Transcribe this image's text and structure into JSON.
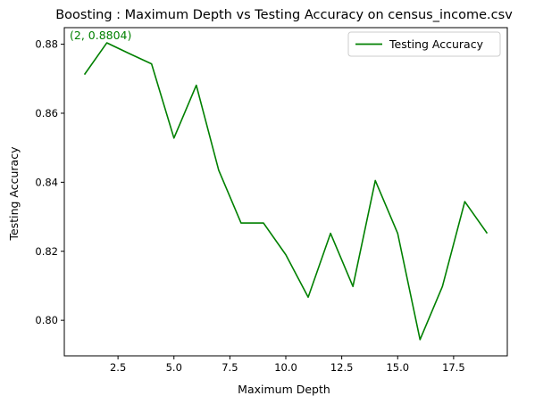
{
  "chart_data": {
    "type": "line",
    "title": "Boosting : Maximum Depth vs Testing Accuracy on census_income.csv",
    "xlabel": "Maximum Depth",
    "ylabel": "Testing Accuracy",
    "xlim": [
      0.1,
      19.9
    ],
    "ylim": [
      0.7897,
      0.8848
    ],
    "xticks": [
      2.5,
      5.0,
      7.5,
      10.0,
      12.5,
      15.0,
      17.5
    ],
    "xtick_labels": [
      "2.5",
      "5.0",
      "7.5",
      "10.0",
      "12.5",
      "15.0",
      "17.5"
    ],
    "yticks": [
      0.8,
      0.82,
      0.84,
      0.86,
      0.88
    ],
    "ytick_labels": [
      "0.80",
      "0.82",
      "0.84",
      "0.86",
      "0.88"
    ],
    "grid": false,
    "legend_position": "top-right",
    "series": [
      {
        "name": "Testing Accuracy",
        "color": "#008000",
        "x": [
          1,
          2,
          3,
          4,
          5,
          6,
          7,
          8,
          9,
          10,
          11,
          12,
          13,
          14,
          15,
          16,
          17,
          18,
          19
        ],
        "y": [
          0.8712,
          0.8804,
          0.8773,
          0.8743,
          0.8528,
          0.8681,
          0.8435,
          0.8282,
          0.8282,
          0.819,
          0.8067,
          0.8252,
          0.8098,
          0.8405,
          0.8252,
          0.7944,
          0.8098,
          0.8344,
          0.8252
        ]
      }
    ],
    "annotations": [
      {
        "text": "(2, 0.8804)",
        "color": "#008000"
      }
    ]
  }
}
